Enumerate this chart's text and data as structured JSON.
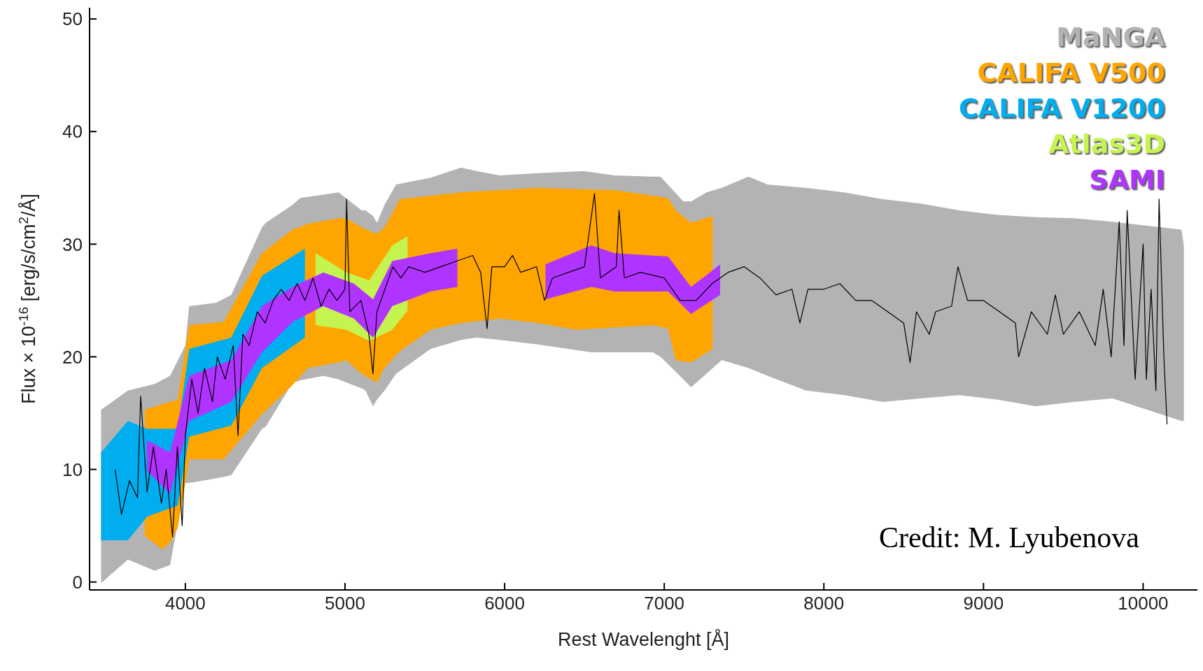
{
  "chart_data": {
    "type": "area",
    "xlabel": "Rest Wavelenght [Å]",
    "ylabel": "Flux × 10$^{-16}$ [erg/s/cm$^{2}$/Å]",
    "xlim": [
      3400,
      10340
    ],
    "xticks": [
      4000,
      5000,
      6000,
      7000,
      8000,
      9000,
      10000
    ],
    "ylim": [
      -0.7,
      51
    ],
    "yticks": [
      0,
      10,
      20,
      30,
      40,
      50
    ],
    "grid": false,
    "marker": "none",
    "line_style": "solid",
    "annotations": [
      "Credit: M. Lyubenova"
    ],
    "series": [
      {
        "name": "MaNGA",
        "color": "#b3b3b3",
        "x": [
          3472,
          3640,
          3808,
          3904,
          4000,
          4024,
          4192,
          4288,
          4480,
          4504,
          4672,
          4720,
          4864,
          4960,
          5104,
          5128,
          5176,
          5200,
          5248,
          5320,
          5536,
          5728,
          5824,
          5968,
          6208,
          6496,
          6544,
          6688,
          6928,
          6977,
          7120,
          7168,
          7264,
          7360,
          7528,
          7648,
          7888,
          8128,
          8368,
          8608,
          8848,
          9088,
          9328,
          9568,
          9808,
          10240,
          10255
        ],
        "values": [
          null,
          null,
          null,
          null,
          null,
          null,
          null,
          null,
          null,
          null,
          null,
          null,
          null,
          null,
          null,
          null,
          null,
          null,
          null,
          null,
          null,
          null,
          null,
          null,
          null,
          null,
          null,
          null,
          null,
          null,
          null,
          null,
          null,
          null,
          null,
          null,
          null,
          null,
          null,
          null,
          null,
          null,
          null,
          null,
          null,
          null,
          null
        ],
        "upper": [
          15.3,
          17,
          17.6,
          18.3,
          21,
          24.5,
          24.8,
          25.5,
          31.5,
          31.9,
          33.5,
          34.1,
          34.4,
          34.6,
          33,
          33,
          32.5,
          31.9,
          33.5,
          35.3,
          35.9,
          36.8,
          36.5,
          36.1,
          36.3,
          36.5,
          36.4,
          36.1,
          36,
          36,
          33.8,
          33.8,
          34.6,
          35,
          36,
          35.3,
          35,
          34.6,
          34,
          33.6,
          33,
          32.6,
          32.4,
          32.3,
          32,
          31.3,
          29.9
        ],
        "lower": [
          -0.1,
          2,
          1,
          1.5,
          8.8,
          8.8,
          9.2,
          9.5,
          13.6,
          13.8,
          17.7,
          17.9,
          18.3,
          18,
          17.2,
          17,
          15.6,
          16.2,
          17,
          18.5,
          20.7,
          21.5,
          21.7,
          21.5,
          21.1,
          20.5,
          20.4,
          20.4,
          20.4,
          20,
          18,
          17.3,
          18.5,
          19.7,
          19,
          18.3,
          17,
          16.6,
          16,
          16.3,
          16.6,
          16.2,
          15.6,
          16,
          16.3,
          14.3,
          14.3
        ]
      },
      {
        "name": "CALIFA V500",
        "color": "#ffa500",
        "x": [
          3746,
          3856,
          3904,
          3952,
          4024,
          4240,
          4480,
          4672,
          4768,
          4960,
          5008,
          5104,
          5200,
          5248,
          5344,
          5536,
          5728,
          5968,
          6208,
          6448,
          6688,
          6928,
          7024,
          7072,
          7168,
          7303
        ],
        "values": [
          null,
          null,
          null,
          null,
          null,
          null,
          null,
          null,
          null,
          null,
          null,
          null,
          null,
          null,
          null,
          null,
          null,
          null,
          null,
          null,
          null,
          null,
          null,
          null,
          null,
          null
        ],
        "upper": [
          15.3,
          15.8,
          16,
          16.2,
          22.8,
          23.1,
          29.2,
          31.3,
          31.8,
          32.3,
          32.3,
          31.5,
          30.9,
          31.5,
          34,
          34.3,
          34.6,
          34.8,
          35,
          34.9,
          34.8,
          34.3,
          34.1,
          33,
          31.9,
          32.5
        ],
        "lower": [
          4.1,
          2.9,
          3.5,
          4.8,
          10.9,
          10.9,
          14.9,
          17.5,
          19,
          19.5,
          19.7,
          18.5,
          17.7,
          19,
          20.5,
          22.4,
          23,
          23.4,
          23,
          22.4,
          22.6,
          22.8,
          22.5,
          19.7,
          19.5,
          20.7
        ]
      },
      {
        "name": "CALIFA V1200",
        "color": "#00aeef",
        "x": [
          3472,
          3640,
          3760,
          3952,
          4024,
          4288,
          4480,
          4749
        ],
        "values": [
          null,
          null,
          null,
          null,
          null,
          null,
          null,
          null
        ],
        "upper": [
          11.5,
          14.3,
          13.6,
          13.6,
          20.7,
          21.7,
          27.2,
          29.6
        ],
        "lower": [
          3.7,
          3.7,
          5.8,
          6.8,
          12.9,
          13.9,
          19,
          21.7
        ]
      },
      {
        "name": "Atlas3D",
        "color": "#c5f34f",
        "x": [
          4816,
          5008,
          5152,
          5296,
          5392
        ],
        "values": [
          null,
          null,
          null,
          null,
          null
        ],
        "upper": [
          29.2,
          27.5,
          26.8,
          29.9,
          30.7
        ],
        "lower": [
          22.8,
          22.4,
          21.4,
          22.4,
          24.1
        ]
      },
      {
        "name": "SAMI",
        "color": "#b034ff",
        "x": [
          3760,
          3904,
          4024,
          4288,
          4480,
          4672,
          4864,
          5056,
          5176,
          5296,
          5536,
          5704,
          6000,
          6256,
          6544,
          6688,
          7024,
          7168,
          7350
        ],
        "values": [
          null,
          null,
          null,
          null,
          null,
          null,
          null,
          null,
          null,
          null,
          null,
          null,
          null,
          null,
          null,
          null,
          null,
          null,
          null
        ],
        "upper": [
          12.6,
          11.5,
          18.3,
          19.7,
          24.5,
          26.2,
          27.5,
          26.5,
          25.1,
          28.5,
          29.2,
          29.6,
          null,
          28.2,
          29.9,
          29.2,
          28.9,
          26.2,
          28.2
        ],
        "lower": [
          9.9,
          7.8,
          14.3,
          16,
          20.4,
          23.1,
          24.5,
          23.4,
          21.7,
          24.5,
          25.8,
          26.2,
          null,
          25.1,
          26.2,
          25.8,
          25.8,
          23.8,
          25.5
        ]
      },
      {
        "type": "line",
        "color": "#000000",
        "x": [
          3560,
          3600,
          3650,
          3700,
          3720,
          3760,
          3800,
          3850,
          3880,
          3920,
          3950,
          3980,
          4000,
          4040,
          4080,
          4120,
          4170,
          4200,
          4250,
          4300,
          4330,
          4360,
          4400,
          4450,
          4500,
          4550,
          4600,
          4650,
          4700,
          4750,
          4800,
          4850,
          4900,
          4950,
          5000,
          5010,
          5030,
          5100,
          5150,
          5175,
          5200,
          5250,
          5300,
          5350,
          5400,
          5500,
          5600,
          5700,
          5800,
          5850,
          5890,
          5920,
          6000,
          6050,
          6100,
          6200,
          6250,
          6300,
          6400,
          6500,
          6563,
          6600,
          6700,
          6717,
          6750,
          6850,
          7000,
          7100,
          7200,
          7300,
          7400,
          7500,
          7600,
          7700,
          7800,
          7850,
          7900,
          8000,
          8100,
          8200,
          8300,
          8400,
          8500,
          8540,
          8580,
          8660,
          8700,
          8800,
          8840,
          8900,
          9000,
          9100,
          9200,
          9220,
          9300,
          9400,
          9450,
          9500,
          9600,
          9700,
          9750,
          9800,
          9850,
          9880,
          9900,
          9950,
          10000,
          10020,
          10050,
          10080,
          10100,
          10130,
          10150
        ],
        "values": [
          10,
          6,
          9,
          7.5,
          16.5,
          8,
          12,
          7,
          10,
          4,
          12,
          5,
          13,
          18,
          15,
          19,
          16,
          20,
          18,
          21,
          13,
          22,
          21,
          24,
          23,
          25,
          26,
          25,
          26.5,
          25,
          27,
          24.5,
          26,
          25,
          26,
          34,
          24,
          25,
          22,
          18.5,
          24,
          26,
          28,
          27,
          28,
          27.5,
          28,
          28.5,
          29,
          27.5,
          22.5,
          28,
          28,
          29,
          27.5,
          28,
          25,
          27,
          27.5,
          28,
          34.5,
          27,
          28,
          33,
          27,
          27.5,
          27,
          25,
          25,
          26.5,
          27.5,
          28,
          27,
          25.5,
          26,
          23,
          26,
          26,
          26.5,
          25,
          25,
          24,
          23,
          19.5,
          24,
          22,
          24,
          24.5,
          28,
          25,
          25,
          24,
          23,
          20,
          24,
          22,
          25.5,
          22,
          24,
          21,
          26,
          20,
          32,
          21,
          33,
          18,
          30,
          18,
          26,
          17,
          34,
          20,
          14
        ]
      }
    ]
  }
}
